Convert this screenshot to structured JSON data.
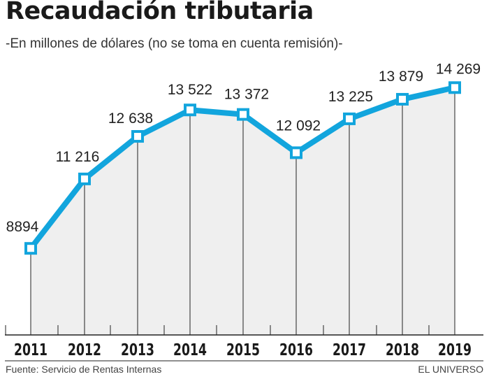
{
  "chart_data": {
    "type": "line",
    "title": "Recaudación tributaria",
    "subtitle": "-En millones de dólares (no se toma en cuenta remisión)-",
    "categories": [
      "2011",
      "2012",
      "2013",
      "2014",
      "2015",
      "2016",
      "2017",
      "2018",
      "2019"
    ],
    "values": [
      8894,
      11216,
      12638,
      13522,
      13372,
      12092,
      13225,
      13879,
      14269
    ],
    "data_labels": [
      "8894",
      "11 216",
      "12 638",
      "13 522",
      "13 372",
      "12 092",
      "13 225",
      "13 879",
      "14 269"
    ],
    "xlabel": "",
    "ylabel": "",
    "ylim": [
      6000,
      15000
    ],
    "grid": false,
    "colors": {
      "line": "#12a5dd",
      "fill": "#efefef",
      "marker_fill": "#ffffff",
      "text": "#222222"
    }
  },
  "footer": {
    "source": "Fuente: Servicio de Rentas Internas",
    "brand": "EL UNIVERSO"
  }
}
